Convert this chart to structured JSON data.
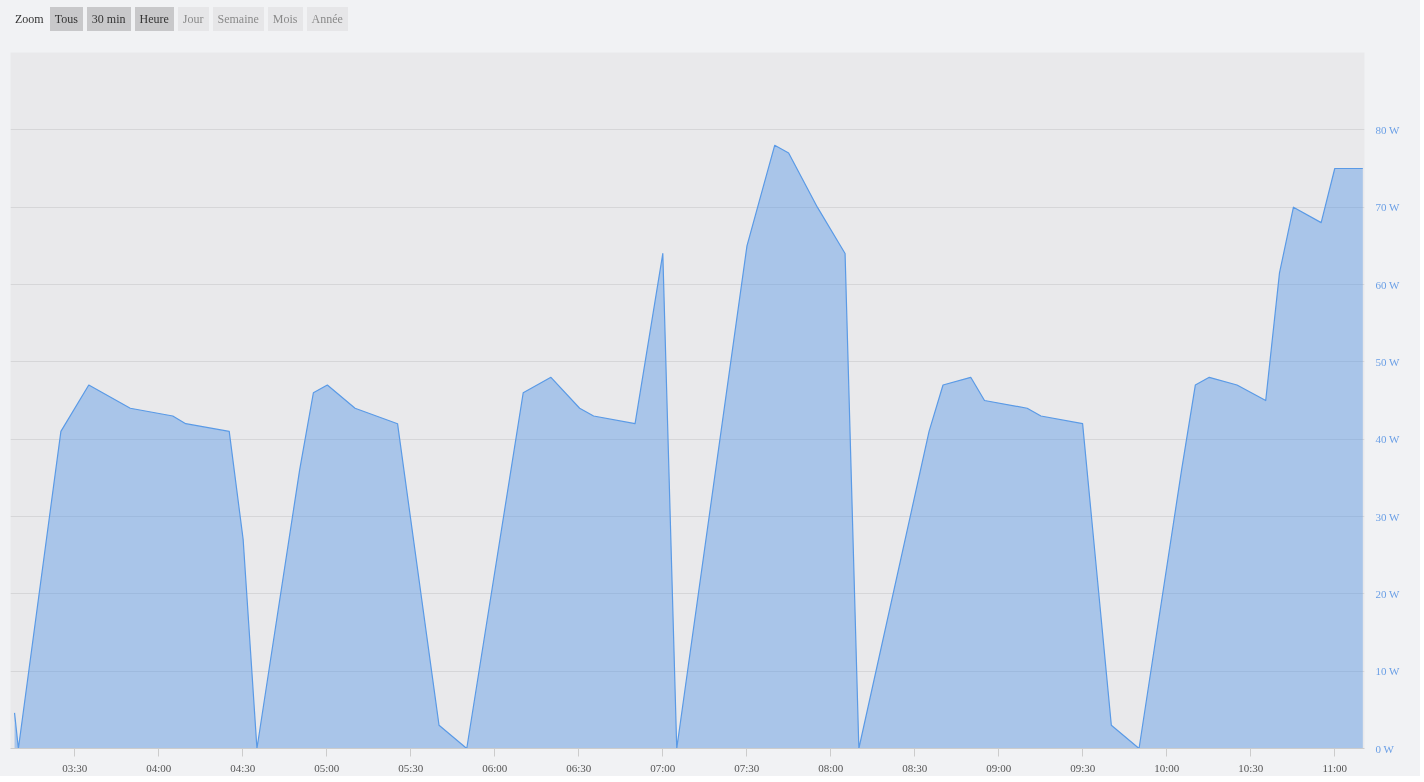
{
  "chart_data": {
    "type": "area",
    "annotations": [
      "Zoom",
      "Tous",
      "30 min",
      "Heure",
      "Jour",
      "Semaine",
      "Mois",
      "Année"
    ],
    "x": [
      3.141,
      3.164,
      3.417,
      3.583,
      3.83,
      4.083,
      4.16,
      4.419,
      4.502,
      4.584,
      4.838,
      4.92,
      5.003,
      5.168,
      5.421,
      5.668,
      5.833,
      6.169,
      6.334,
      6.505,
      6.588,
      6.835,
      7.0,
      7.083,
      7.501,
      7.666,
      7.749,
      7.92,
      8.085,
      8.167,
      8.585,
      8.668,
      8.833,
      8.915,
      9.169,
      9.251,
      9.499,
      9.67,
      9.835,
      10.088,
      10.17,
      10.253,
      10.418,
      10.589,
      10.671,
      10.754,
      10.919,
      11.0,
      11.084,
      11.167
    ],
    "series": [
      {
        "color": "#5a9ae6",
        "values": [
          4.6,
          0,
          41,
          47,
          44,
          43,
          42,
          41,
          27,
          0,
          36,
          46,
          47,
          44,
          42,
          3,
          0,
          46,
          48,
          44,
          43,
          42,
          64,
          0,
          65,
          78,
          77,
          70,
          64,
          0,
          41,
          47,
          48,
          45,
          44,
          43,
          42,
          3,
          0,
          36,
          47,
          48,
          47,
          45,
          61.5,
          70,
          68,
          75,
          75,
          75
        ]
      }
    ],
    "xlim": [
      3.117,
      11.177
    ],
    "xticks": [
      {
        "value": 3.5,
        "label": "03:30"
      },
      {
        "value": 4.0,
        "label": "04:00"
      },
      {
        "value": 4.5,
        "label": "04:30"
      },
      {
        "value": 5.0,
        "label": "05:00"
      },
      {
        "value": 5.5,
        "label": "05:30"
      },
      {
        "value": 6.0,
        "label": "06:00"
      },
      {
        "value": 6.5,
        "label": "06:30"
      },
      {
        "value": 7.0,
        "label": "07:00"
      },
      {
        "value": 7.5,
        "label": "07:30"
      },
      {
        "value": 8.0,
        "label": "08:00"
      },
      {
        "value": 8.5,
        "label": "08:30"
      },
      {
        "value": 9.0,
        "label": "09:00"
      },
      {
        "value": 9.5,
        "label": "09:30"
      },
      {
        "value": 10.0,
        "label": "10:00"
      },
      {
        "value": 10.5,
        "label": "10:30"
      },
      {
        "value": 11.0,
        "label": "11:00"
      }
    ],
    "ylim": [
      0,
      90
    ],
    "yticks": [
      {
        "value": 0,
        "label": "0 W"
      },
      {
        "value": 10,
        "label": "10 W"
      },
      {
        "value": 20,
        "label": "20 W"
      },
      {
        "value": 30,
        "label": "30 W"
      },
      {
        "value": 40,
        "label": "40 W"
      },
      {
        "value": 50,
        "label": "50 W"
      },
      {
        "value": 60,
        "label": "60 W"
      },
      {
        "value": 70,
        "label": "70 W"
      },
      {
        "value": 80,
        "label": "80 W"
      }
    ],
    "grid": "y"
  }
}
